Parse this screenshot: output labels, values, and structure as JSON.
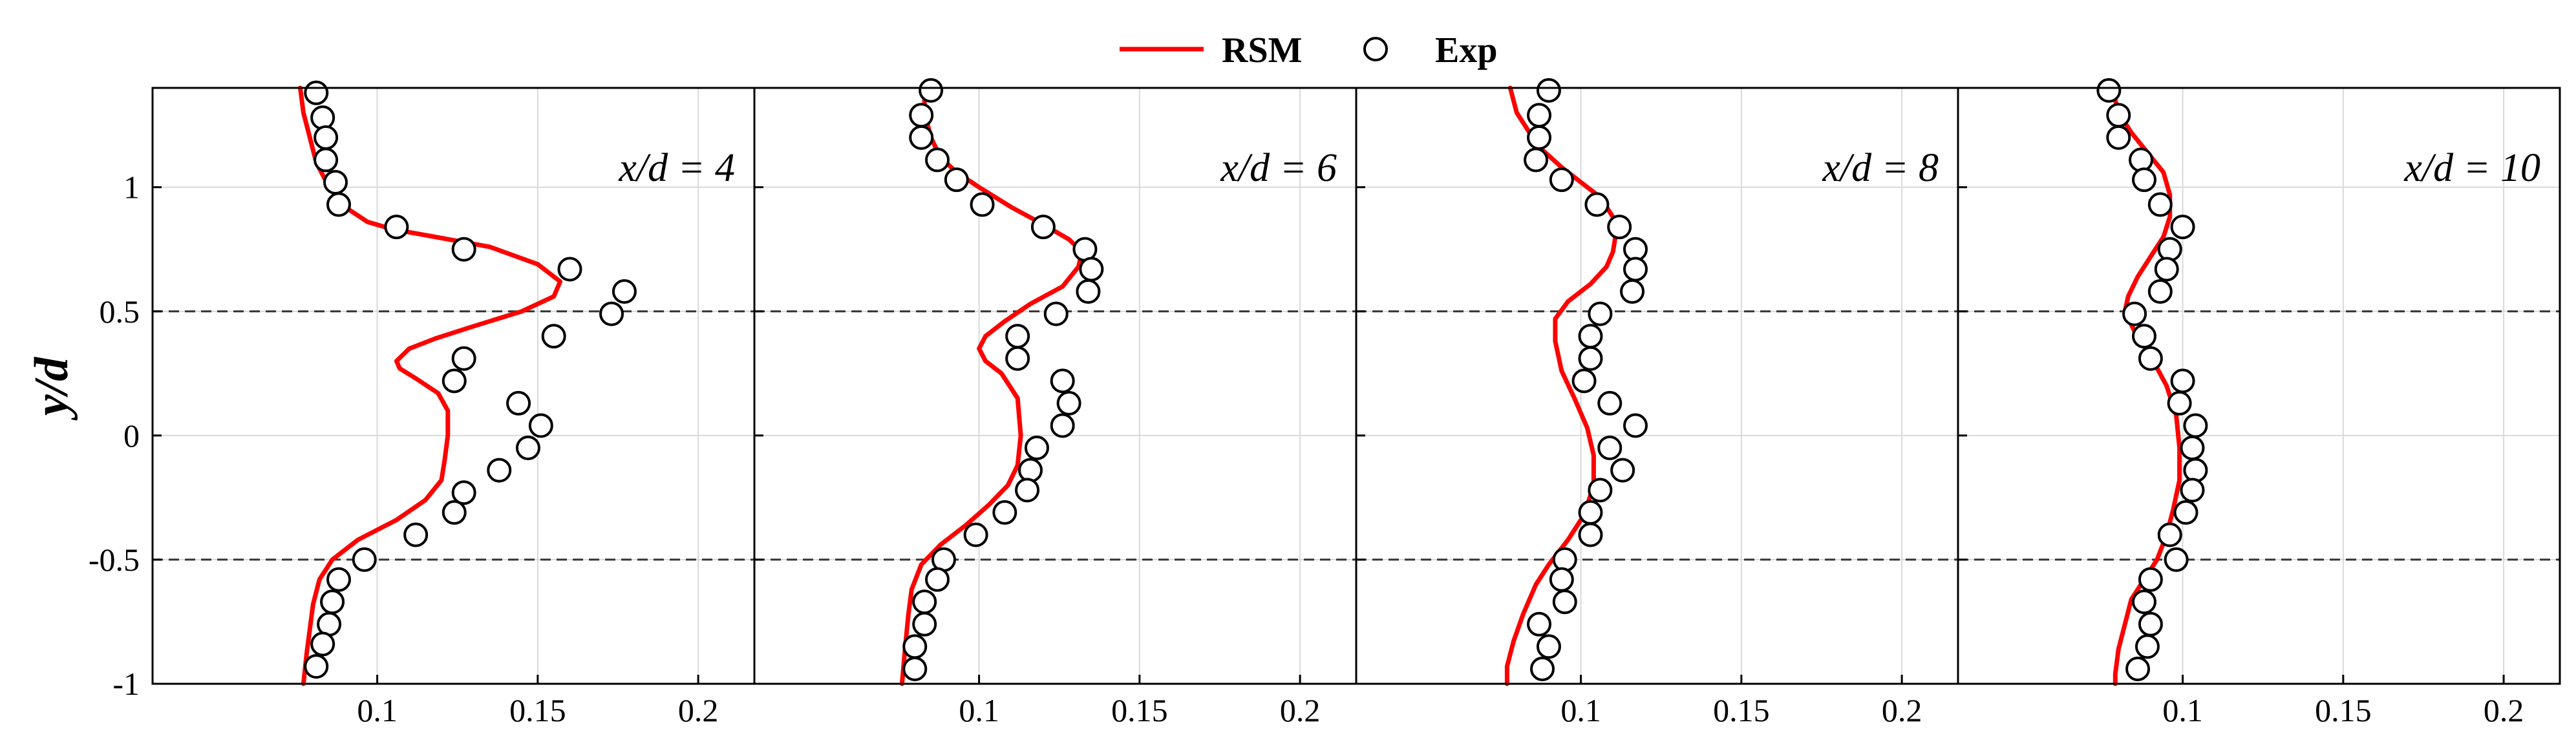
{
  "chart_data": {
    "type": "line",
    "ylabel": "y/d",
    "ylim": [
      -1,
      1.4
    ],
    "xlim": [
      0.03,
      0.2175
    ],
    "y_ticks": [
      "1",
      "0.5",
      "0",
      "-0.5",
      "-1"
    ],
    "y_tick_values": [
      1,
      0.5,
      0,
      -0.5,
      -1
    ],
    "x_ticks": [
      "0.1",
      "0.15",
      "0.2"
    ],
    "x_tick_values": [
      0.1,
      0.15,
      0.2
    ],
    "grid": true,
    "reference_lines_y": [
      0.5,
      -0.5
    ],
    "legend": {
      "placement": "top-center",
      "entries": [
        {
          "label": "RSM",
          "style": "line",
          "color": "#ff0000"
        },
        {
          "label": "Exp",
          "style": "open-circle",
          "color": "#000000"
        }
      ]
    },
    "panels": [
      {
        "label": "x/d = 4",
        "series": [
          {
            "name": "RSM",
            "points": [
              [
                0.076,
                1.4
              ],
              [
                0.077,
                1.3
              ],
              [
                0.079,
                1.2
              ],
              [
                0.081,
                1.1
              ],
              [
                0.085,
                1.0
              ],
              [
                0.09,
                0.92
              ],
              [
                0.097,
                0.86
              ],
              [
                0.105,
                0.83
              ],
              [
                0.118,
                0.8
              ],
              [
                0.135,
                0.76
              ],
              [
                0.15,
                0.69
              ],
              [
                0.157,
                0.62
              ],
              [
                0.155,
                0.56
              ],
              [
                0.145,
                0.5
              ],
              [
                0.13,
                0.44
              ],
              [
                0.118,
                0.39
              ],
              [
                0.11,
                0.35
              ],
              [
                0.106,
                0.3
              ],
              [
                0.107,
                0.27
              ],
              [
                0.112,
                0.23
              ],
              [
                0.119,
                0.17
              ],
              [
                0.122,
                0.1
              ],
              [
                0.122,
                0.0
              ],
              [
                0.121,
                -0.1
              ],
              [
                0.12,
                -0.18
              ],
              [
                0.115,
                -0.26
              ],
              [
                0.106,
                -0.34
              ],
              [
                0.094,
                -0.42
              ],
              [
                0.086,
                -0.5
              ],
              [
                0.082,
                -0.58
              ],
              [
                0.08,
                -0.68
              ],
              [
                0.079,
                -0.78
              ],
              [
                0.078,
                -0.88
              ],
              [
                0.077,
                -1.0
              ]
            ]
          },
          {
            "name": "Exp",
            "points": [
              [
                0.081,
                1.38
              ],
              [
                0.083,
                1.28
              ],
              [
                0.084,
                1.2
              ],
              [
                0.084,
                1.11
              ],
              [
                0.087,
                1.02
              ],
              [
                0.088,
                0.93
              ],
              [
                0.106,
                0.84
              ],
              [
                0.127,
                0.75
              ],
              [
                0.16,
                0.67
              ],
              [
                0.177,
                0.58
              ],
              [
                0.173,
                0.49
              ],
              [
                0.155,
                0.4
              ],
              [
                0.127,
                0.31
              ],
              [
                0.124,
                0.22
              ],
              [
                0.144,
                0.13
              ],
              [
                0.151,
                0.04
              ],
              [
                0.147,
                -0.05
              ],
              [
                0.138,
                -0.14
              ],
              [
                0.127,
                -0.23
              ],
              [
                0.124,
                -0.31
              ],
              [
                0.112,
                -0.4
              ],
              [
                0.096,
                -0.5
              ],
              [
                0.088,
                -0.58
              ],
              [
                0.086,
                -0.67
              ],
              [
                0.085,
                -0.76
              ],
              [
                0.083,
                -0.84
              ],
              [
                0.081,
                -0.93
              ]
            ]
          }
        ]
      },
      {
        "label": "x/d = 6",
        "series": [
          {
            "name": "RSM",
            "points": [
              [
                0.083,
                1.4
              ],
              [
                0.083,
                1.3
              ],
              [
                0.085,
                1.2
              ],
              [
                0.088,
                1.12
              ],
              [
                0.093,
                1.06
              ],
              [
                0.1,
                1.0
              ],
              [
                0.11,
                0.92
              ],
              [
                0.12,
                0.85
              ],
              [
                0.128,
                0.79
              ],
              [
                0.132,
                0.74
              ],
              [
                0.131,
                0.68
              ],
              [
                0.126,
                0.6
              ],
              [
                0.116,
                0.53
              ],
              [
                0.108,
                0.46
              ],
              [
                0.102,
                0.4
              ],
              [
                0.1,
                0.35
              ],
              [
                0.102,
                0.3
              ],
              [
                0.107,
                0.25
              ],
              [
                0.112,
                0.15
              ],
              [
                0.113,
                0.0
              ],
              [
                0.112,
                -0.12
              ],
              [
                0.109,
                -0.2
              ],
              [
                0.103,
                -0.28
              ],
              [
                0.096,
                -0.36
              ],
              [
                0.088,
                -0.44
              ],
              [
                0.082,
                -0.52
              ],
              [
                0.079,
                -0.62
              ],
              [
                0.078,
                -0.72
              ],
              [
                0.077,
                -0.85
              ],
              [
                0.076,
                -1.0
              ]
            ]
          },
          {
            "name": "Exp",
            "points": [
              [
                0.085,
                1.39
              ],
              [
                0.082,
                1.29
              ],
              [
                0.082,
                1.2
              ],
              [
                0.087,
                1.11
              ],
              [
                0.093,
                1.03
              ],
              [
                0.101,
                0.93
              ],
              [
                0.12,
                0.84
              ],
              [
                0.133,
                0.75
              ],
              [
                0.135,
                0.67
              ],
              [
                0.134,
                0.58
              ],
              [
                0.124,
                0.49
              ],
              [
                0.112,
                0.4
              ],
              [
                0.112,
                0.31
              ],
              [
                0.126,
                0.22
              ],
              [
                0.128,
                0.13
              ],
              [
                0.126,
                0.04
              ],
              [
                0.118,
                -0.05
              ],
              [
                0.116,
                -0.14
              ],
              [
                0.115,
                -0.22
              ],
              [
                0.108,
                -0.31
              ],
              [
                0.099,
                -0.4
              ],
              [
                0.089,
                -0.5
              ],
              [
                0.087,
                -0.58
              ],
              [
                0.083,
                -0.67
              ],
              [
                0.083,
                -0.76
              ],
              [
                0.08,
                -0.85
              ],
              [
                0.08,
                -0.94
              ]
            ]
          }
        ]
      },
      {
        "label": "x/d = 8",
        "series": [
          {
            "name": "RSM",
            "points": [
              [
                0.078,
                1.4
              ],
              [
                0.08,
                1.3
              ],
              [
                0.084,
                1.22
              ],
              [
                0.088,
                1.15
              ],
              [
                0.094,
                1.08
              ],
              [
                0.1,
                1.02
              ],
              [
                0.106,
                0.96
              ],
              [
                0.11,
                0.88
              ],
              [
                0.111,
                0.82
              ],
              [
                0.11,
                0.74
              ],
              [
                0.108,
                0.68
              ],
              [
                0.103,
                0.61
              ],
              [
                0.096,
                0.54
              ],
              [
                0.092,
                0.47
              ],
              [
                0.092,
                0.38
              ],
              [
                0.094,
                0.26
              ],
              [
                0.098,
                0.15
              ],
              [
                0.102,
                0.03
              ],
              [
                0.104,
                -0.08
              ],
              [
                0.104,
                -0.2
              ],
              [
                0.101,
                -0.32
              ],
              [
                0.096,
                -0.42
              ],
              [
                0.09,
                -0.52
              ],
              [
                0.086,
                -0.6
              ],
              [
                0.082,
                -0.72
              ],
              [
                0.079,
                -0.83
              ],
              [
                0.077,
                -0.93
              ],
              [
                0.077,
                -1.0
              ]
            ]
          },
          {
            "name": "Exp",
            "points": [
              [
                0.09,
                1.39
              ],
              [
                0.087,
                1.29
              ],
              [
                0.087,
                1.2
              ],
              [
                0.086,
                1.11
              ],
              [
                0.094,
                1.03
              ],
              [
                0.105,
                0.93
              ],
              [
                0.112,
                0.84
              ],
              [
                0.117,
                0.75
              ],
              [
                0.117,
                0.67
              ],
              [
                0.116,
                0.58
              ],
              [
                0.106,
                0.49
              ],
              [
                0.103,
                0.4
              ],
              [
                0.103,
                0.31
              ],
              [
                0.101,
                0.22
              ],
              [
                0.109,
                0.13
              ],
              [
                0.117,
                0.04
              ],
              [
                0.109,
                -0.05
              ],
              [
                0.113,
                -0.14
              ],
              [
                0.106,
                -0.22
              ],
              [
                0.103,
                -0.31
              ],
              [
                0.103,
                -0.4
              ],
              [
                0.095,
                -0.5
              ],
              [
                0.094,
                -0.58
              ],
              [
                0.095,
                -0.67
              ],
              [
                0.087,
                -0.76
              ],
              [
                0.09,
                -0.85
              ],
              [
                0.088,
                -0.94
              ]
            ]
          }
        ]
      },
      {
        "label": "x/d = 10",
        "series": [
          {
            "name": "RSM",
            "points": [
              [
                0.078,
                1.4
              ],
              [
                0.08,
                1.3
              ],
              [
                0.084,
                1.22
              ],
              [
                0.089,
                1.14
              ],
              [
                0.094,
                1.06
              ],
              [
                0.096,
                0.97
              ],
              [
                0.096,
                0.88
              ],
              [
                0.094,
                0.8
              ],
              [
                0.09,
                0.72
              ],
              [
                0.086,
                0.64
              ],
              [
                0.083,
                0.56
              ],
              [
                0.082,
                0.5
              ],
              [
                0.085,
                0.42
              ],
              [
                0.09,
                0.32
              ],
              [
                0.095,
                0.2
              ],
              [
                0.098,
                0.08
              ],
              [
                0.099,
                -0.05
              ],
              [
                0.099,
                -0.18
              ],
              [
                0.097,
                -0.3
              ],
              [
                0.095,
                -0.4
              ],
              [
                0.092,
                -0.5
              ],
              [
                0.088,
                -0.58
              ],
              [
                0.084,
                -0.66
              ],
              [
                0.082,
                -0.76
              ],
              [
                0.08,
                -0.86
              ],
              [
                0.079,
                -0.96
              ],
              [
                0.079,
                -1.0
              ]
            ]
          },
          {
            "name": "Exp",
            "points": [
              [
                0.077,
                1.39
              ],
              [
                0.08,
                1.29
              ],
              [
                0.08,
                1.2
              ],
              [
                0.087,
                1.11
              ],
              [
                0.088,
                1.03
              ],
              [
                0.093,
                0.93
              ],
              [
                0.1,
                0.84
              ],
              [
                0.096,
                0.75
              ],
              [
                0.095,
                0.67
              ],
              [
                0.093,
                0.58
              ],
              [
                0.085,
                0.49
              ],
              [
                0.088,
                0.4
              ],
              [
                0.09,
                0.31
              ],
              [
                0.1,
                0.22
              ],
              [
                0.099,
                0.13
              ],
              [
                0.104,
                0.04
              ],
              [
                0.103,
                -0.05
              ],
              [
                0.104,
                -0.14
              ],
              [
                0.103,
                -0.22
              ],
              [
                0.101,
                -0.31
              ],
              [
                0.096,
                -0.4
              ],
              [
                0.098,
                -0.5
              ],
              [
                0.09,
                -0.58
              ],
              [
                0.088,
                -0.67
              ],
              [
                0.09,
                -0.76
              ],
              [
                0.089,
                -0.85
              ],
              [
                0.086,
                -0.94
              ]
            ]
          }
        ]
      }
    ]
  }
}
